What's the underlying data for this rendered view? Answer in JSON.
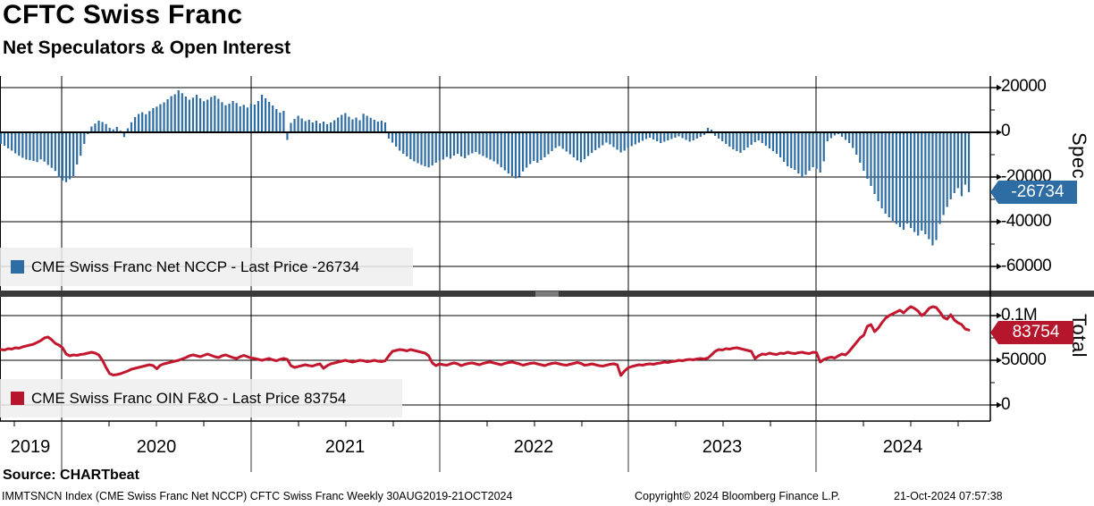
{
  "header": {
    "title": "CFTC Swiss Franc",
    "subtitle": "Net Speculators & Open Interest"
  },
  "top_panel": {
    "legend_label": "CME Swiss Franc Net NCCP - Last Price -26734",
    "axis_title": "Spec",
    "ticks": [
      "20000",
      "0",
      "-20000",
      "-40000",
      "-60000"
    ],
    "badge": "-26734",
    "badge_color": "#2e6da4"
  },
  "bottom_panel": {
    "legend_label": "CME Swiss Franc OIN F&O - Last Price 83754",
    "axis_title": "Total",
    "ticks": [
      "0.1M",
      "50000",
      "0"
    ],
    "badge": "83754",
    "badge_color": "#b5162b"
  },
  "x_axis": {
    "years": [
      "2019",
      "2020",
      "2021",
      "2022",
      "2023",
      "2024"
    ]
  },
  "footer": {
    "source": "Source: CHARTbeat",
    "info": "IMMTSNCN Index (CME Swiss Franc Net NCCP) CFTC Swiss Franc  Weekly 30AUG2019-21OCT2024",
    "copyright": "Copyright© 2024 Bloomberg Finance L.P.",
    "datetime": "21-Oct-2024 07:57:38"
  },
  "chart_data": [
    {
      "type": "bar",
      "name": "CME Swiss Franc Net NCCP",
      "color": "#2e6da4",
      "last_price": -26734,
      "frequency": "Weekly",
      "x_start_label": "30AUG2019",
      "x_end_label": "21OCT2024",
      "ylim": [
        -70800,
        25200
      ],
      "axis_ticks": [
        20000,
        0,
        -20000,
        -40000,
        -60000
      ],
      "values": [
        -5200,
        -6000,
        -7200,
        -8200,
        -9400,
        -10500,
        -11400,
        -12200,
        -12500,
        -12800,
        -13300,
        -12100,
        -13100,
        -14600,
        -15900,
        -17300,
        -20200,
        -21600,
        -22300,
        -21000,
        -19600,
        -14400,
        -10500,
        -5200,
        -800,
        2600,
        3900,
        5200,
        4600,
        3700,
        2000,
        1300,
        2400,
        700,
        -2100,
        1800,
        4500,
        6800,
        8200,
        9000,
        8100,
        9500,
        10800,
        11500,
        12600,
        13400,
        14800,
        16200,
        17000,
        18800,
        17500,
        16000,
        14600,
        15500,
        16800,
        15200,
        13900,
        14600,
        15800,
        16400,
        15000,
        13500,
        12100,
        12800,
        14000,
        13100,
        11600,
        12300,
        11100,
        12700,
        12400,
        14000,
        16800,
        15200,
        13600,
        12000,
        10400,
        8800,
        9600,
        -3400,
        4200,
        6000,
        7400,
        6200,
        5000,
        5600,
        4400,
        5200,
        4000,
        4800,
        3600,
        4400,
        5400,
        6600,
        7800,
        8600,
        7000,
        5800,
        6600,
        5400,
        8300,
        7400,
        6500,
        5600,
        4800,
        5200,
        4400,
        -2800,
        -4600,
        -6400,
        -8200,
        -9600,
        -10800,
        -12000,
        -13000,
        -13800,
        -14600,
        -15200,
        -15700,
        -14800,
        -13600,
        -12600,
        -12200,
        -11000,
        -11800,
        -10400,
        -9600,
        -10800,
        -11600,
        -10200,
        -9400,
        -8800,
        -9800,
        -10600,
        -11400,
        -12200,
        -13000,
        -14200,
        -15600,
        -17000,
        -18400,
        -19600,
        -20600,
        -19800,
        -17500,
        -15800,
        -14200,
        -12800,
        -13600,
        -12400,
        -11200,
        -9800,
        -8400,
        -7000,
        -6200,
        -7400,
        -8600,
        -9800,
        -11200,
        -12600,
        -13400,
        -12000,
        -10600,
        -9200,
        -8000,
        -7000,
        -5800,
        -4600,
        -5400,
        -6600,
        -7800,
        -9000,
        -8200,
        -7000,
        -6200,
        -5400,
        -4600,
        -3800,
        -3000,
        -2400,
        -3200,
        -4000,
        -4800,
        -4200,
        -3600,
        -3000,
        -2400,
        -1800,
        -2600,
        -3400,
        -4200,
        -3600,
        -2800,
        -2000,
        -1200,
        2000,
        1200,
        -1600,
        -2800,
        -4000,
        -5200,
        -6400,
        -7600,
        -8400,
        -9200,
        -8000,
        -6800,
        -5600,
        -4400,
        -3600,
        -4800,
        -6000,
        -7200,
        -8400,
        -9600,
        -11200,
        -13200,
        -15200,
        -16000,
        -16800,
        -18400,
        -20000,
        -19000,
        -17200,
        -15600,
        -16400,
        -18000,
        -13000,
        -4000,
        -2600,
        -1400,
        -800,
        -2000,
        -3400,
        -4800,
        -7000,
        -10000,
        -13600,
        -17200,
        -20800,
        -24000,
        -27600,
        -30800,
        -34000,
        -36400,
        -38000,
        -39600,
        -41000,
        -42400,
        -43600,
        -40800,
        -42800,
        -44600,
        -46200,
        -44000,
        -45600,
        -47800,
        -50600,
        -48200,
        -41000,
        -37000,
        -33400,
        -30000,
        -27200,
        -25000,
        -28600,
        -23400,
        -26734
      ]
    },
    {
      "type": "line",
      "name": "CME Swiss Franc OIN F&O",
      "color": "#c2182f",
      "last_price": 83754,
      "frequency": "Weekly",
      "x_start_label": "30AUG2019",
      "x_end_label": "21OCT2024",
      "ylim": [
        -18000,
        121000
      ],
      "axis_ticks": [
        100000,
        50000,
        0
      ],
      "values": [
        62000,
        61500,
        63000,
        62500,
        64000,
        63500,
        65000,
        66000,
        67000,
        68000,
        70000,
        72000,
        75000,
        76000,
        73000,
        69000,
        67000,
        64000,
        57000,
        55000,
        56000,
        55500,
        56500,
        57000,
        58000,
        59000,
        58000,
        56000,
        50000,
        42000,
        35000,
        33500,
        34000,
        35000,
        36500,
        38000,
        40000,
        41000,
        42000,
        43000,
        44000,
        45000,
        44000,
        40500,
        44500,
        46000,
        47000,
        48000,
        49000,
        50000,
        51500,
        53000,
        55000,
        56000,
        55000,
        54000,
        55500,
        57000,
        55500,
        54000,
        53000,
        55000,
        56000,
        54500,
        53000,
        52000,
        54000,
        55500,
        54000,
        52500,
        52000,
        51000,
        50000,
        51000,
        52000,
        50500,
        49500,
        51000,
        52000,
        51000,
        44000,
        42000,
        43000,
        44000,
        45000,
        44000,
        43500,
        45000,
        46000,
        41000,
        44000,
        46000,
        47000,
        48000,
        49000,
        50000,
        49000,
        48000,
        49000,
        50000,
        49500,
        48500,
        49000,
        50000,
        49000,
        48500,
        49500,
        55000,
        60000,
        61000,
        62000,
        61500,
        60500,
        62000,
        61000,
        60000,
        59000,
        58000,
        55000,
        47000,
        44000,
        46000,
        45000,
        44500,
        46000,
        47000,
        46000,
        44000,
        45500,
        46500,
        47000,
        46000,
        45000,
        46500,
        47500,
        48000,
        47000,
        46000,
        45000,
        46500,
        47500,
        48000,
        47000,
        46000,
        44500,
        45500,
        46500,
        47000,
        46000,
        45000,
        44000,
        45500,
        46500,
        47000,
        46000,
        45000,
        44500,
        45500,
        46500,
        47500,
        46500,
        44500,
        45000,
        46000,
        45000,
        44000,
        43500,
        44500,
        45500,
        46000,
        45000,
        33000,
        38000,
        41500,
        43000,
        44000,
        45000,
        44500,
        45500,
        46000,
        45500,
        46500,
        47000,
        48000,
        47500,
        48500,
        49000,
        50000,
        49500,
        50500,
        51000,
        50500,
        51500,
        52000,
        51500,
        52500,
        56000,
        60000,
        62000,
        61500,
        63000,
        62500,
        63500,
        64000,
        63000,
        62000,
        61000,
        60000,
        52000,
        55000,
        57000,
        56500,
        58000,
        57000,
        56500,
        58000,
        57500,
        59000,
        58000,
        57500,
        58500,
        59000,
        58000,
        57500,
        59000,
        58500,
        48000,
        51000,
        52500,
        53500,
        52500,
        55000,
        57000,
        56000,
        60000,
        65000,
        70000,
        75000,
        78000,
        88000,
        90000,
        82000,
        86000,
        92000,
        97000,
        100000,
        102000,
        104000,
        106000,
        103000,
        107000,
        110000,
        108000,
        105000,
        100000,
        103000,
        108000,
        110000,
        109000,
        104000,
        98000,
        96000,
        101000,
        95000,
        92000,
        90000,
        85000,
        83754
      ]
    }
  ]
}
